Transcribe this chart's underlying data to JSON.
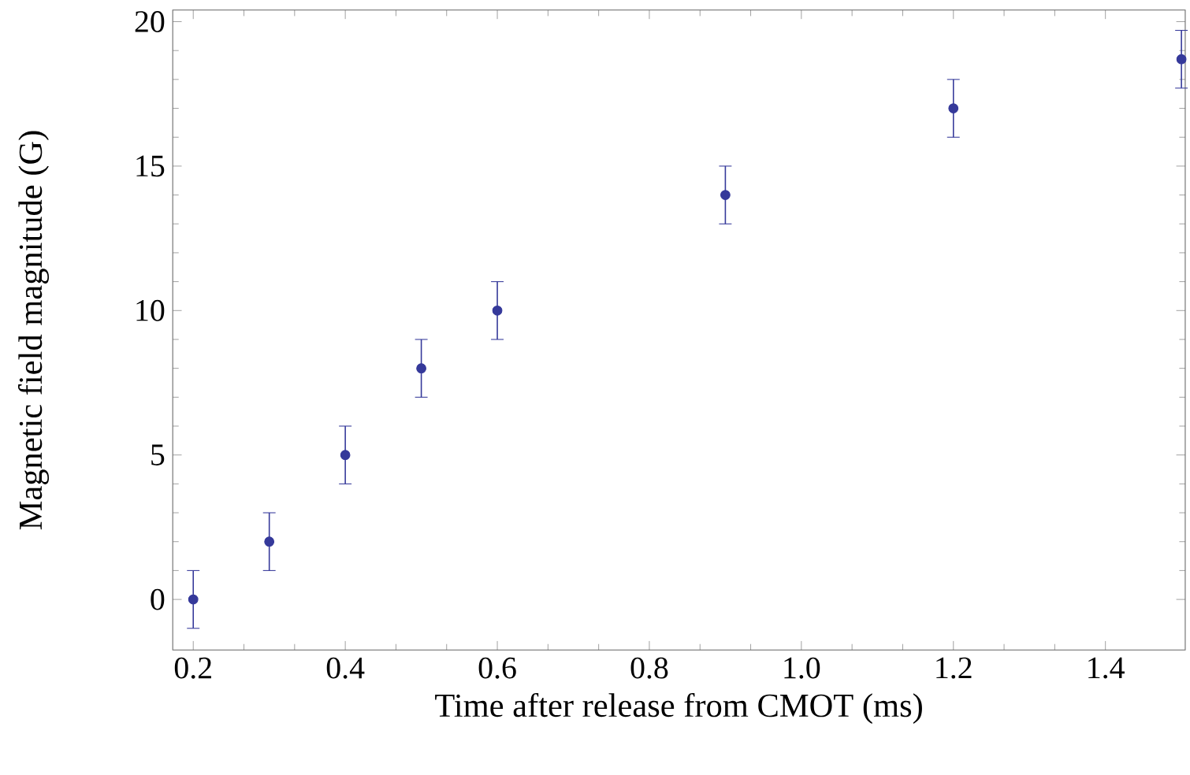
{
  "chart_data": {
    "type": "scatter",
    "xlabel": "Time after release from CMOT (ms)",
    "ylabel": "Magnetic field magnitude (G)",
    "x": [
      0.2,
      0.3,
      0.4,
      0.5,
      0.6,
      0.9,
      1.2,
      1.5
    ],
    "values": [
      0,
      2,
      5,
      8,
      10,
      14,
      17,
      18.7
    ],
    "errors": [
      1,
      1,
      1,
      1,
      1,
      1,
      1,
      1
    ],
    "color": "#35399a",
    "marker": "circle",
    "xlim": [
      0.173,
      1.505
    ],
    "ylim": [
      -1.75,
      20.4
    ],
    "xticks": [
      {
        "value": 0.2,
        "label": "0.2"
      },
      {
        "value": 0.4,
        "label": "0.4"
      },
      {
        "value": 0.6,
        "label": "0.6"
      },
      {
        "value": 0.8,
        "label": "0.8"
      },
      {
        "value": 1.0,
        "label": "1.0"
      },
      {
        "value": 1.2,
        "label": "1.2"
      },
      {
        "value": 1.4,
        "label": "1.4"
      }
    ],
    "yticks": [
      0,
      5,
      10,
      15,
      20
    ]
  }
}
